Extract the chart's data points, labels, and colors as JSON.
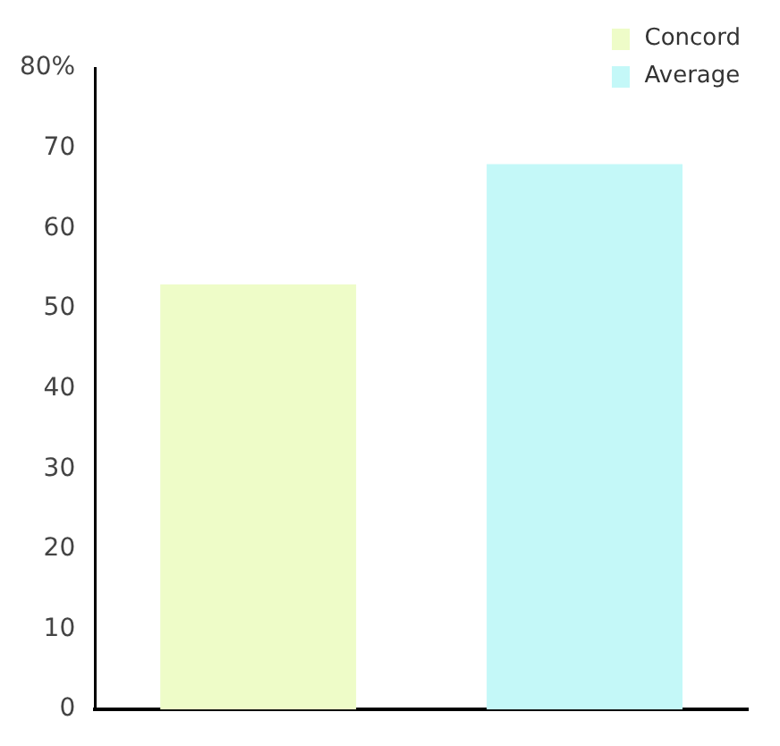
{
  "chart_data": {
    "type": "bar",
    "categories": [
      null
    ],
    "series": [
      {
        "name": "Concord",
        "color": "#eefcc8",
        "values": [
          53
        ]
      },
      {
        "name": "Average",
        "color": "#c4f8f8",
        "values": [
          68
        ]
      }
    ],
    "ylim": [
      0,
      80
    ],
    "yticks": [
      0,
      10,
      20,
      30,
      40,
      50,
      60,
      70,
      {
        "value": 80,
        "label": "80%"
      }
    ],
    "grid": false,
    "legend": "top right"
  }
}
